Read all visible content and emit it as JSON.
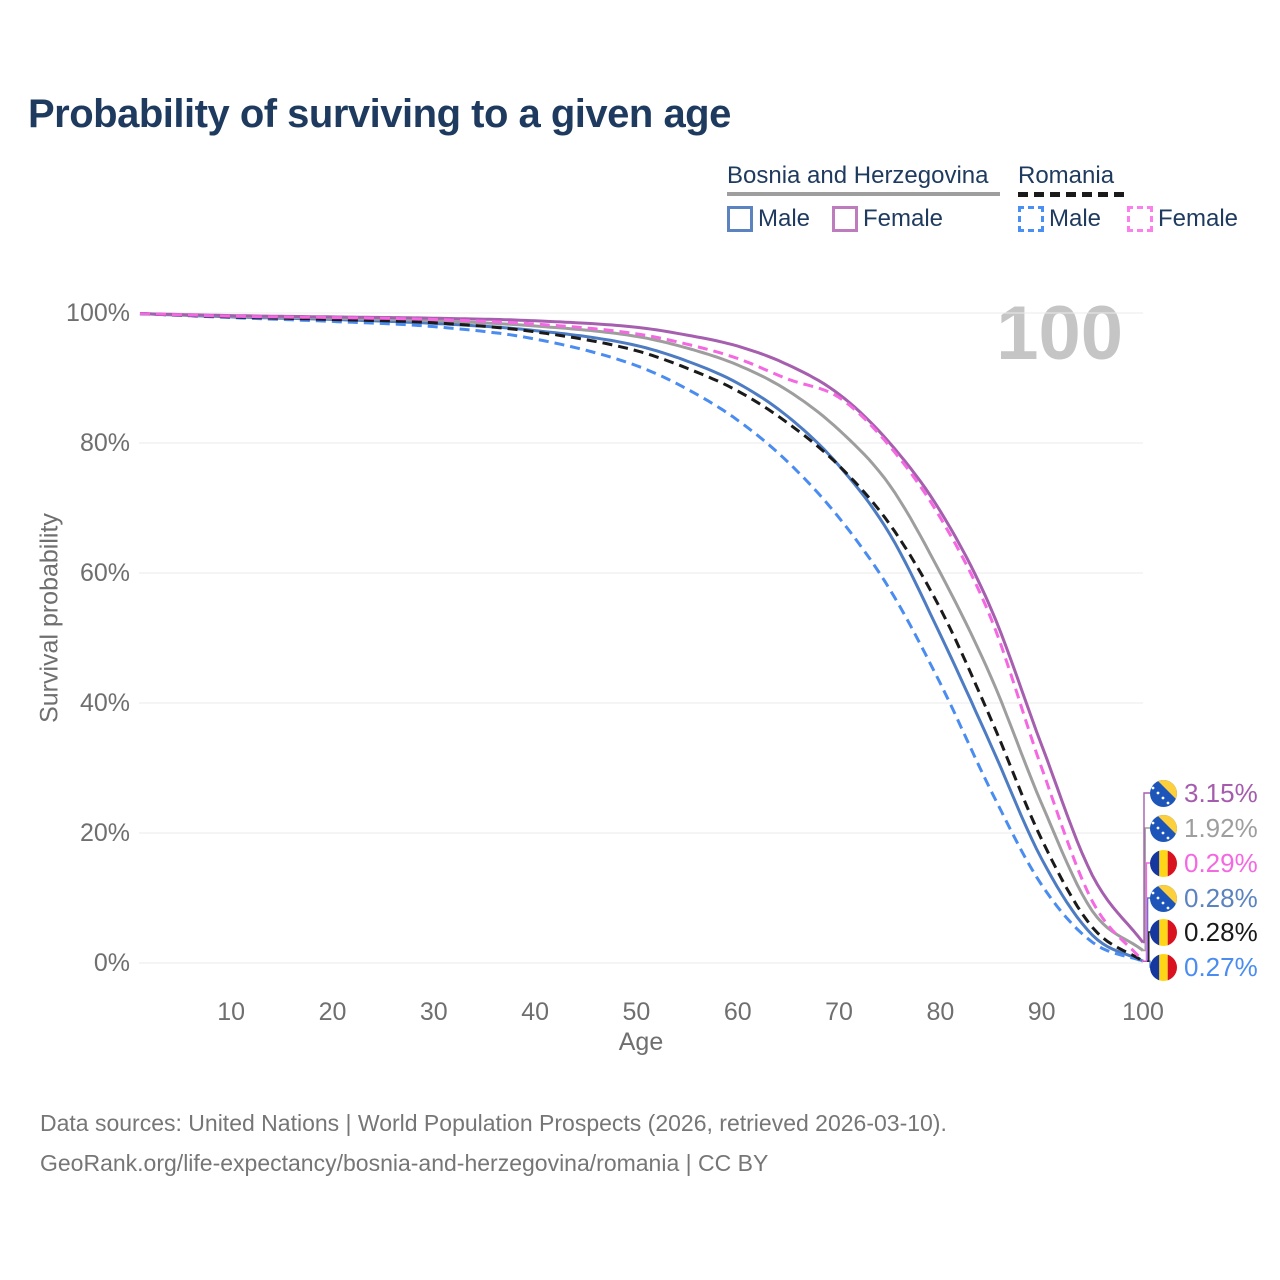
{
  "title": "Probability of surviving to a given age",
  "legend": {
    "groups": [
      {
        "name": "Bosnia and Herzegovina",
        "line_style": "solid",
        "underline_color": "#9e9e9e",
        "items": [
          {
            "label": "Male",
            "color": "#5b83c0",
            "border_style": "solid"
          },
          {
            "label": "Female",
            "color": "#bd7cbd",
            "border_style": "solid"
          }
        ]
      },
      {
        "name": "Romania",
        "line_style": "dashed",
        "underline_color": "#1a1a1a",
        "items": [
          {
            "label": "Male",
            "color": "#4a90f2",
            "border_style": "dashed"
          },
          {
            "label": "Female",
            "color": "#fb80ec",
            "border_style": "dashed"
          }
        ]
      }
    ]
  },
  "annotation": "100",
  "y_axis": {
    "label": "Survival probability",
    "tick_values": [
      0,
      20,
      40,
      60,
      80,
      100
    ],
    "tick_suffix": "%"
  },
  "x_axis": {
    "label": "Age",
    "tick_values": [
      10,
      20,
      30,
      40,
      50,
      60,
      70,
      80,
      90,
      100
    ]
  },
  "end_labels": [
    {
      "value": "3.15%",
      "series": "Bosnia and Herzegovina — Female",
      "flag": "ba",
      "color": "#a55cad"
    },
    {
      "value": "1.92%",
      "series": "Bosnia and Herzegovina — Both sexes",
      "flag": "ba",
      "color": "#9e9e9e"
    },
    {
      "value": "0.29%",
      "series": "Romania — Female",
      "flag": "ro",
      "color": "#f468e2"
    },
    {
      "value": "0.28%",
      "series": "Bosnia and Herzegovina — Male",
      "flag": "ba",
      "color": "#5b83c0"
    },
    {
      "value": "0.28%",
      "series": "Romania — Both sexes",
      "flag": "ro",
      "color": "#1a1a1a"
    },
    {
      "value": "0.27%",
      "series": "Romania — Male",
      "flag": "ro",
      "color": "#4a8cf0"
    }
  ],
  "footer": {
    "line1": "Data sources: United Nations | World Population Prospects (2026, retrieved 2026-03-10).",
    "line2": "GeoRank.org/life-expectancy/bosnia-and-herzegovina/romania | CC BY"
  },
  "chart_data": {
    "type": "line",
    "title": "Probability of surviving to a given age",
    "xlabel": "Age",
    "ylabel": "Survival probability",
    "xlim": [
      1,
      100
    ],
    "ylim": [
      0,
      100
    ],
    "grid": "horizontal-only",
    "legend_position": "top-right",
    "x": [
      1,
      10,
      20,
      30,
      40,
      50,
      55,
      60,
      65,
      70,
      75,
      80,
      85,
      90,
      95,
      100
    ],
    "series": [
      {
        "name": "Bosnia and Herzegovina — Male",
        "style": "solid",
        "color": "#4d7cc3",
        "label_row": 3,
        "end_label": "0.28%",
        "values": [
          99.9,
          99.4,
          99.0,
          98.4,
          97.3,
          95.0,
          92.6,
          89.2,
          84.0,
          76.5,
          66.0,
          50.5,
          33.5,
          16.0,
          4.3,
          0.28
        ]
      },
      {
        "name": "Bosnia and Herzegovina — Both sexes",
        "style": "solid",
        "color": "#9e9e9e",
        "label_row": 1,
        "end_label": "1.92%",
        "values": [
          99.9,
          99.5,
          99.2,
          98.8,
          98.0,
          96.4,
          94.6,
          92.0,
          88.0,
          82.0,
          73.5,
          60.0,
          44.0,
          24.5,
          8.0,
          1.92
        ]
      },
      {
        "name": "Bosnia and Herzegovina — Female",
        "style": "solid",
        "color": "#a55fae",
        "label_row": 0,
        "end_label": "3.15%",
        "values": [
          99.9,
          99.6,
          99.4,
          99.2,
          98.8,
          97.8,
          96.6,
          94.9,
          92.0,
          87.5,
          80.0,
          69.5,
          54.5,
          33.5,
          13.5,
          3.15
        ]
      },
      {
        "name": "Romania — Male",
        "style": "dashed",
        "color": "#4a8cf0",
        "label_row": 5,
        "end_label": "0.27%",
        "values": [
          99.9,
          99.3,
          98.7,
          97.9,
          96.0,
          91.9,
          88.3,
          83.5,
          77.0,
          68.5,
          57.5,
          43.0,
          26.5,
          12.0,
          3.2,
          0.27
        ]
      },
      {
        "name": "Romania — Both sexes",
        "style": "dashed",
        "color": "#1a1a1a",
        "label_row": 4,
        "end_label": "0.28%",
        "values": [
          99.9,
          99.4,
          99.0,
          98.5,
          97.1,
          94.2,
          91.5,
          88.0,
          83.0,
          76.5,
          67.5,
          54.5,
          37.5,
          19.0,
          5.5,
          0.28
        ]
      },
      {
        "name": "Romania — Female",
        "style": "dashed",
        "color": "#f468e2",
        "label_row": 2,
        "end_label": "0.29%",
        "values": [
          99.9,
          99.5,
          99.3,
          99.0,
          98.3,
          96.8,
          95.2,
          93.0,
          89.8,
          87.0,
          79.5,
          68.5,
          53.0,
          30.0,
          9.5,
          0.29
        ]
      }
    ]
  }
}
